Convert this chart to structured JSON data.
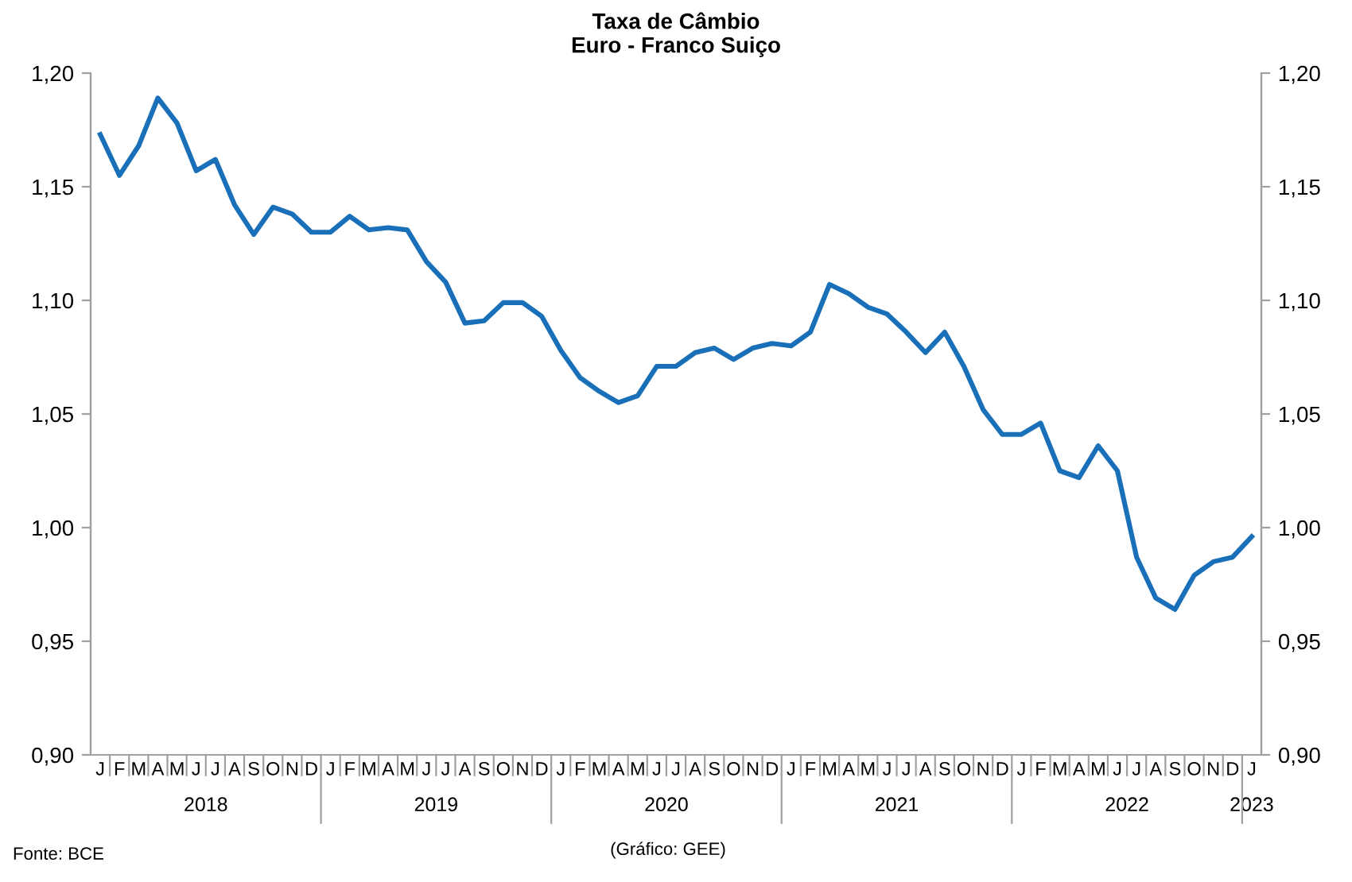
{
  "chart_data": {
    "type": "line",
    "title": "Taxa de Câmbio\nEuro - Franco Suiço",
    "categories": [
      "J",
      "F",
      "M",
      "A",
      "M",
      "J",
      "J",
      "A",
      "S",
      "O",
      "N",
      "D",
      "J",
      "F",
      "M",
      "A",
      "M",
      "J",
      "J",
      "A",
      "S",
      "O",
      "N",
      "D",
      "J",
      "F",
      "M",
      "A",
      "M",
      "J",
      "J",
      "A",
      "S",
      "O",
      "N",
      "D",
      "J",
      "F",
      "M",
      "A",
      "M",
      "J",
      "J",
      "A",
      "S",
      "O",
      "N",
      "D",
      "J",
      "F",
      "M",
      "A",
      "M",
      "J",
      "J",
      "A",
      "S",
      "O",
      "N",
      "D",
      "J"
    ],
    "series": [
      {
        "color": "#1a70b8",
        "values": [
          1.173,
          1.155,
          1.168,
          1.189,
          1.178,
          1.157,
          1.162,
          1.142,
          1.129,
          1.141,
          1.138,
          1.13,
          1.13,
          1.137,
          1.131,
          1.132,
          1.131,
          1.117,
          1.108,
          1.09,
          1.091,
          1.099,
          1.099,
          1.093,
          1.078,
          1.066,
          1.06,
          1.055,
          1.058,
          1.071,
          1.071,
          1.077,
          1.079,
          1.074,
          1.079,
          1.081,
          1.08,
          1.086,
          1.107,
          1.103,
          1.097,
          1.094,
          1.086,
          1.077,
          1.086,
          1.071,
          1.052,
          1.041,
          1.041,
          1.046,
          1.025,
          1.022,
          1.036,
          1.025,
          0.987,
          0.969,
          0.964,
          0.979,
          0.985,
          0.987,
          0.996
        ]
      }
    ],
    "ylim": [
      0.9,
      1.2
    ],
    "yticks": [
      {
        "value": 0.9,
        "label": "0,90"
      },
      {
        "value": 0.95,
        "label": "0,95"
      },
      {
        "value": 1.0,
        "label": "1,00"
      },
      {
        "value": 1.05,
        "label": "1,05"
      },
      {
        "value": 1.1,
        "label": "1,10"
      },
      {
        "value": 1.15,
        "label": "1,15"
      },
      {
        "value": 1.2,
        "label": "1,20"
      }
    ],
    "y2lim": [
      0.9,
      1.2
    ],
    "y2ticks": [
      {
        "value": 0.9,
        "label": "0,90"
      },
      {
        "value": 0.95,
        "label": "0,95"
      },
      {
        "value": 1.0,
        "label": "1,00"
      },
      {
        "value": 1.05,
        "label": "1,05"
      },
      {
        "value": 1.1,
        "label": "1,10"
      },
      {
        "value": 1.15,
        "label": "1,15"
      },
      {
        "value": 1.2,
        "label": "1,20"
      }
    ],
    "grid": false,
    "legend": false,
    "marker": "none",
    "line_style": "solid",
    "annotations": [
      "2018",
      "2019",
      "2020",
      "2021",
      "2022",
      "2023",
      "Fonte: BCE",
      "(Gráfico: GEE)"
    ]
  }
}
